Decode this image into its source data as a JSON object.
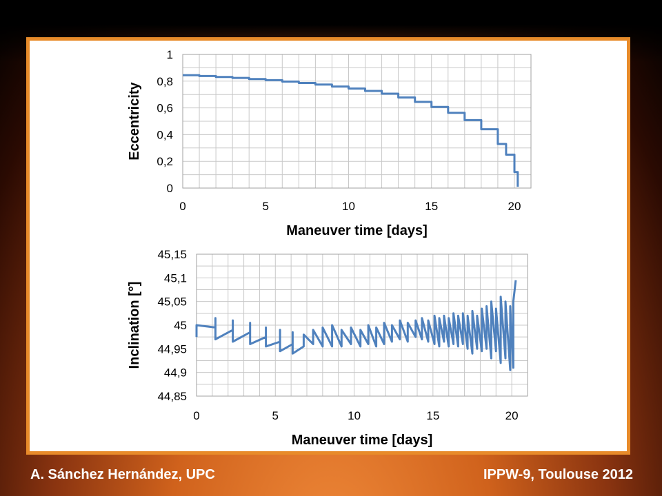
{
  "footer": {
    "left": "A. Sánchez Hernández, UPC",
    "right": "IPPW-9, Toulouse 2012"
  },
  "colors": {
    "series": "#4f81bd",
    "frame": "#e88b2a",
    "grid": "#c8c8c8"
  },
  "chart_data": [
    {
      "type": "line",
      "xlabel": "Maneuver time [days]",
      "ylabel": "Eccentricity",
      "xlim": [
        0,
        21
      ],
      "ylim": [
        0,
        1
      ],
      "xticks": [
        "0",
        "5",
        "10",
        "15",
        "20"
      ],
      "xtick_values": [
        0,
        5,
        10,
        15,
        20
      ],
      "yticks": [
        "0",
        "0,2",
        "0,4",
        "0,6",
        "0,8",
        "1"
      ],
      "ytick_values": [
        0,
        0.2,
        0.4,
        0.6,
        0.8,
        1
      ],
      "grid": true,
      "series": [
        {
          "x": [
            0,
            1,
            2,
            3,
            4,
            5,
            6,
            7,
            8,
            9,
            10,
            11,
            12,
            13,
            14,
            15,
            16,
            17,
            18,
            19,
            19.5,
            20,
            20.2
          ],
          "y": [
            0.845,
            0.838,
            0.831,
            0.824,
            0.816,
            0.807,
            0.797,
            0.786,
            0.774,
            0.76,
            0.745,
            0.727,
            0.706,
            0.678,
            0.645,
            0.607,
            0.563,
            0.508,
            0.44,
            0.33,
            0.25,
            0.12,
            0.01
          ]
        }
      ]
    },
    {
      "type": "line",
      "xlabel": "Maneuver time [days]",
      "ylabel": "Inclination [°]",
      "xlim": [
        0,
        21
      ],
      "ylim": [
        44.85,
        45.15
      ],
      "xticks": [
        "0",
        "5",
        "10",
        "15",
        "20"
      ],
      "xtick_values": [
        0,
        5,
        10,
        15,
        20
      ],
      "yticks": [
        "44,85",
        "44,9",
        "44,95",
        "45",
        "45,05",
        "45,1",
        "45,15"
      ],
      "ytick_values": [
        44.85,
        44.9,
        44.95,
        45,
        45.05,
        45.1,
        45.15
      ],
      "grid": true,
      "series": [
        {
          "x": [
            0,
            0,
            1.2,
            1.2,
            1.2,
            2.3,
            2.3,
            2.3,
            3.4,
            3.4,
            3.4,
            4.4,
            4.4,
            4.4,
            5.3,
            5.3,
            5.3,
            6.1,
            6.1,
            6.1,
            6.8,
            6.8,
            7.4,
            7.4,
            8.0,
            8.0,
            8.6,
            8.6,
            9.2,
            9.2,
            9.8,
            9.8,
            10.4,
            10.4,
            10.9,
            10.9,
            11.4,
            11.4,
            11.9,
            11.9,
            12.4,
            12.4,
            12.9,
            12.9,
            13.4,
            13.4,
            13.9,
            13.9,
            14.3,
            14.3,
            14.7,
            14.7,
            15.1,
            15.1,
            15.4,
            15.4,
            15.7,
            15.7,
            16.0,
            16.0,
            16.3,
            16.3,
            16.6,
            16.6,
            16.9,
            16.9,
            17.2,
            17.2,
            17.5,
            17.5,
            17.8,
            17.8,
            18.1,
            18.1,
            18.4,
            18.4,
            18.7,
            18.7,
            19.0,
            19.0,
            19.3,
            19.3,
            19.6,
            19.6,
            19.9,
            19.9,
            20.1,
            20.1,
            20.25
          ],
          "y": [
            44.975,
            45.0,
            44.995,
            45.015,
            44.97,
            44.99,
            45.01,
            44.965,
            44.985,
            45.005,
            44.96,
            44.975,
            44.995,
            44.955,
            44.965,
            44.99,
            44.945,
            44.96,
            44.985,
            44.94,
            44.955,
            44.98,
            44.96,
            44.99,
            44.955,
            44.995,
            44.955,
            45.0,
            44.955,
            44.99,
            44.96,
            44.995,
            44.955,
            44.99,
            44.96,
            45.0,
            44.955,
            44.995,
            44.96,
            45.005,
            44.965,
            45.0,
            44.97,
            45.01,
            44.965,
            45.005,
            44.975,
            45.01,
            44.97,
            45.015,
            44.965,
            45.01,
            44.96,
            45.02,
            44.955,
            45.015,
            44.965,
            45.02,
            44.955,
            45.015,
            44.96,
            45.025,
            44.955,
            45.02,
            44.96,
            45.025,
            44.95,
            45.02,
            44.94,
            45.03,
            44.95,
            45.02,
            44.945,
            45.035,
            44.95,
            45.04,
            44.93,
            45.05,
            44.945,
            45.035,
            44.92,
            45.06,
            44.93,
            45.05,
            44.905,
            45.04,
            44.91,
            45.05,
            45.095
          ]
        }
      ]
    }
  ]
}
